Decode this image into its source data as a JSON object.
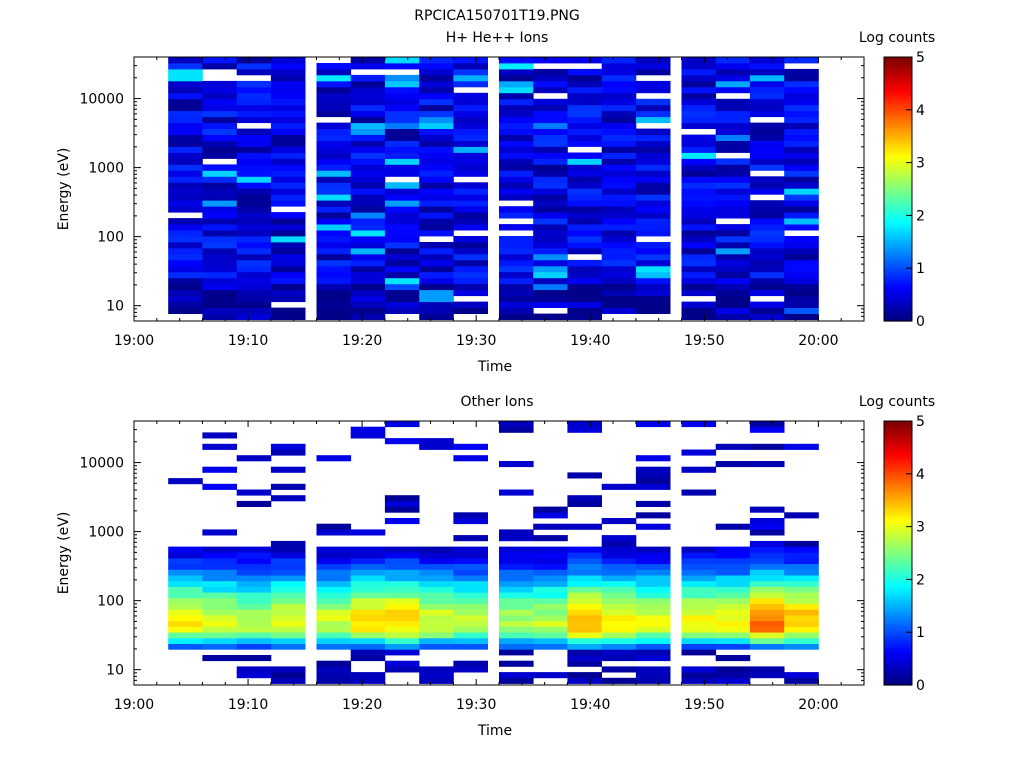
{
  "figure_title": "RPCICA150701T19.PNG",
  "colorbar": {
    "title": "Log counts",
    "range": [
      0,
      5
    ],
    "ticks": [
      "0",
      "1",
      "2",
      "3",
      "4",
      "5"
    ],
    "colormap": "jet"
  },
  "chart_data": [
    {
      "type": "heatmap",
      "title": "H+ He++ Ions",
      "xlabel": "Time",
      "ylabel": "Energy (eV)",
      "xlim": [
        "19:00",
        "20:04"
      ],
      "ylim": [
        6,
        40000
      ],
      "yscale": "log",
      "x_ticks": [
        "19:00",
        "19:10",
        "19:20",
        "19:30",
        "19:40",
        "19:50",
        "20:00"
      ],
      "y_ticks": [
        "10",
        "100",
        "1000",
        "10000"
      ],
      "colorbar_label": "Log counts",
      "time_bins": [
        "19:03",
        "19:06",
        "19:09",
        "19:12",
        "19:16",
        "19:19",
        "19:22",
        "19:25",
        "19:28",
        "19:32",
        "19:35",
        "19:38",
        "19:41",
        "19:44",
        "19:48",
        "19:51",
        "19:54",
        "19:57"
      ],
      "energy_range": [
        6,
        40000
      ],
      "typical_log_counts": 0.5,
      "max_log_counts": 1.8
    },
    {
      "type": "heatmap",
      "title": "Other Ions",
      "xlabel": "Time",
      "ylabel": "Energy (eV)",
      "xlim": [
        "19:00",
        "20:04"
      ],
      "ylim": [
        6,
        40000
      ],
      "yscale": "log",
      "x_ticks": [
        "19:00",
        "19:10",
        "19:20",
        "19:30",
        "19:40",
        "19:50",
        "20:00"
      ],
      "y_ticks": [
        "10",
        "100",
        "1000",
        "10000"
      ],
      "colorbar_label": "Log counts",
      "time_bins": [
        "19:03",
        "19:06",
        "19:09",
        "19:12",
        "19:16",
        "19:19",
        "19:22",
        "19:25",
        "19:28",
        "19:32",
        "19:35",
        "19:38",
        "19:41",
        "19:44",
        "19:48",
        "19:51",
        "19:54",
        "19:57"
      ],
      "core_energy_range": [
        20,
        600
      ],
      "peak_energy": 45,
      "peak_log_counts": [
        3.2,
        2.9,
        2.8,
        3.0,
        2.9,
        3.3,
        3.4,
        3.0,
        2.8,
        2.7,
        2.8,
        3.6,
        3.2,
        3.0,
        3.1,
        3.2,
        3.9,
        3.5
      ]
    }
  ]
}
